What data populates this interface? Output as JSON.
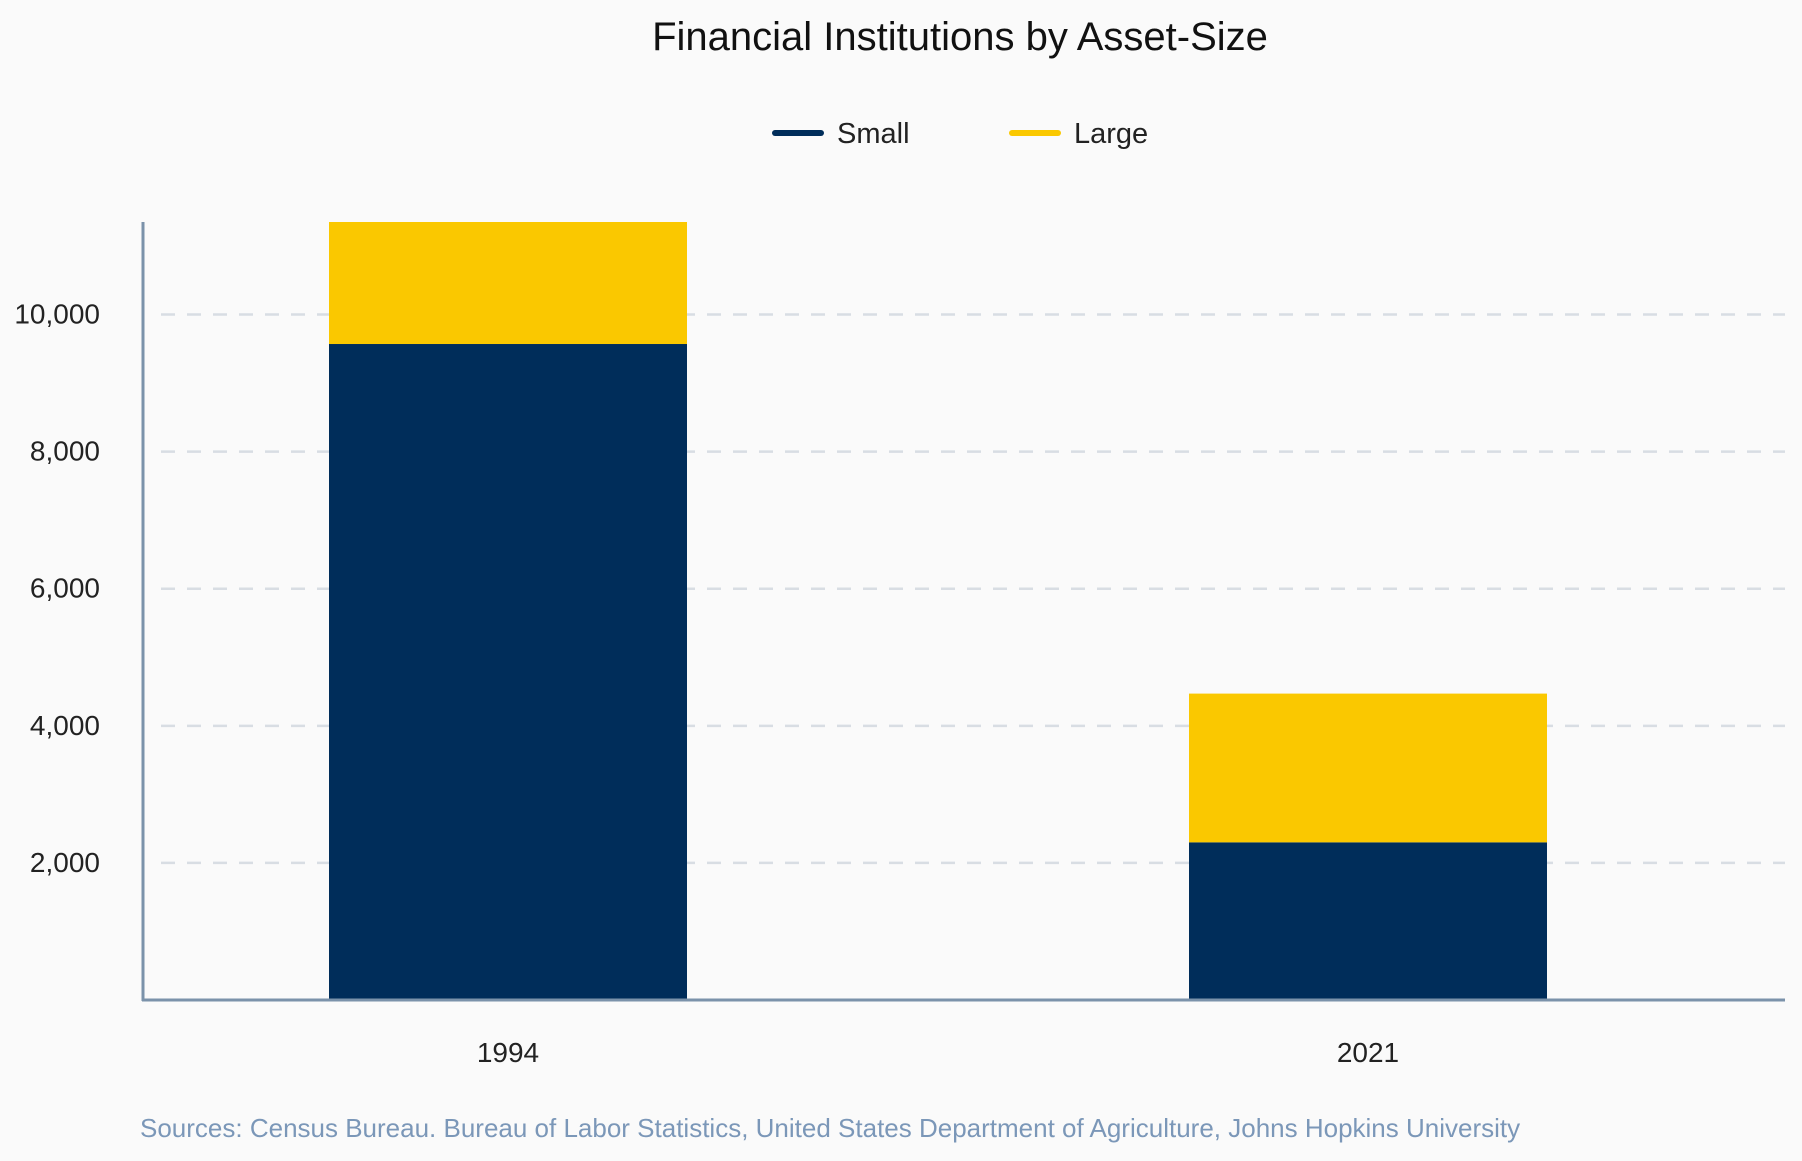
{
  "chart_data": {
    "type": "bar",
    "stacked": true,
    "title": "Financial Institutions by Asset-Size",
    "categories": [
      "1994",
      "2021"
    ],
    "series": [
      {
        "name": "Small",
        "color": "#002d5a",
        "values": [
          9570,
          2300
        ]
      },
      {
        "name": "Large",
        "color": "#fac800",
        "values": [
          1780,
          2170
        ]
      }
    ],
    "ylim": [
      0,
      11350
    ],
    "yticks": [
      2000,
      4000,
      6000,
      8000,
      10000
    ],
    "ytick_labels": [
      "2,000",
      "4,000",
      "6,000",
      "8,000",
      "10,000"
    ],
    "grid": true,
    "legend_position": "top-center",
    "source": "Sources: Census Bureau. Bureau of Labor Statistics, United States Department of Agriculture, Johns Hopkins University"
  },
  "colors": {
    "background": "#fafafa",
    "axis": "#7b92aa",
    "grid": "#d8dde3",
    "title": "#111111",
    "tick_text": "#222222",
    "source_text": "#7b97b8"
  }
}
